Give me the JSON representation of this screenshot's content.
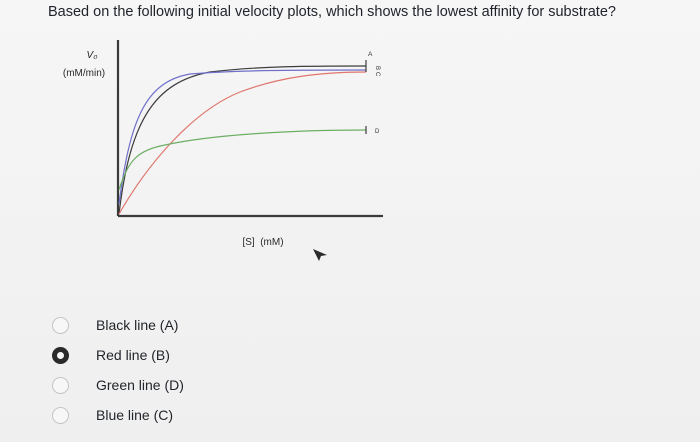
{
  "question": "Based on the following initial velocity plots, which shows the lowest affinity for substrate?",
  "chart_data": {
    "type": "line",
    "ylabel_line1": "V₀",
    "ylabel_line2": "(mM/min)",
    "xlabel": "[S]  (mM)",
    "series": [
      {
        "name": "A",
        "color": "#3d3d3d"
      },
      {
        "name": "B",
        "color": "#e0766d"
      },
      {
        "name": "C",
        "color": "#6f70c9"
      },
      {
        "name": "D",
        "color": "#6caf64"
      }
    ]
  },
  "options": [
    {
      "label": "Black line (A)",
      "selected": false
    },
    {
      "label": "Red line (B)",
      "selected": true
    },
    {
      "label": "Green line (D)",
      "selected": false
    },
    {
      "label": "Blue line (C)",
      "selected": false
    }
  ]
}
